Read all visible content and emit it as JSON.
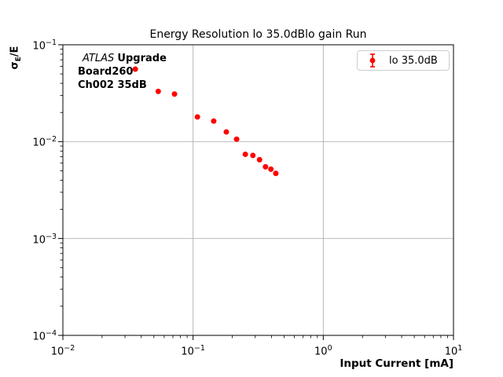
{
  "figure": {
    "title": "Energy Resolution lo 35.0dBlo gain Run",
    "background_color": "#ffffff"
  },
  "annotation": {
    "experiment": "ATLAS",
    "experiment_suffix": "Upgrade",
    "board": "Board260",
    "channel": "Ch002 35dB"
  },
  "legend": {
    "label": "lo 35.0dB",
    "marker": "red-errorbar-point",
    "marker_color": "#ff0000",
    "border_color": "#cccccc"
  },
  "axes": {
    "xlabel": "Input Current [mA]",
    "ylabel_main": "σ",
    "ylabel_sub": "E",
    "ylabel_tail": "/E",
    "tick_base": "10",
    "x_tick_exponents": [
      -2,
      -1,
      0,
      1
    ],
    "y_tick_exponents": [
      -1,
      -2,
      -3,
      -4
    ],
    "x_grid_exponents": [
      -1,
      0
    ],
    "y_grid_exponents": [
      -2,
      -3
    ],
    "grid_color": "#b0b0b0",
    "spine_color": "#000000"
  },
  "chart_data": {
    "type": "scatter",
    "title": "Energy Resolution lo 35.0dBlo gain Run",
    "xlabel": "Input Current [mA]",
    "ylabel": "sigma_E/E",
    "xscale": "log",
    "yscale": "log",
    "xlim": [
      0.01,
      10
    ],
    "ylim": [
      0.0001,
      0.1
    ],
    "grid": true,
    "legend_position": "upper right",
    "series": [
      {
        "name": "lo 35.0dB",
        "color": "#ff0000",
        "marker": "circle",
        "marker_radius_px": 3.5,
        "x": [
          0.036,
          0.054,
          0.072,
          0.108,
          0.144,
          0.18,
          0.216,
          0.252,
          0.288,
          0.324,
          0.36,
          0.396,
          0.432
        ],
        "y": [
          0.056,
          0.033,
          0.031,
          0.018,
          0.0163,
          0.0126,
          0.0106,
          0.0074,
          0.0072,
          0.0065,
          0.0055,
          0.0052,
          0.0047
        ]
      }
    ]
  }
}
